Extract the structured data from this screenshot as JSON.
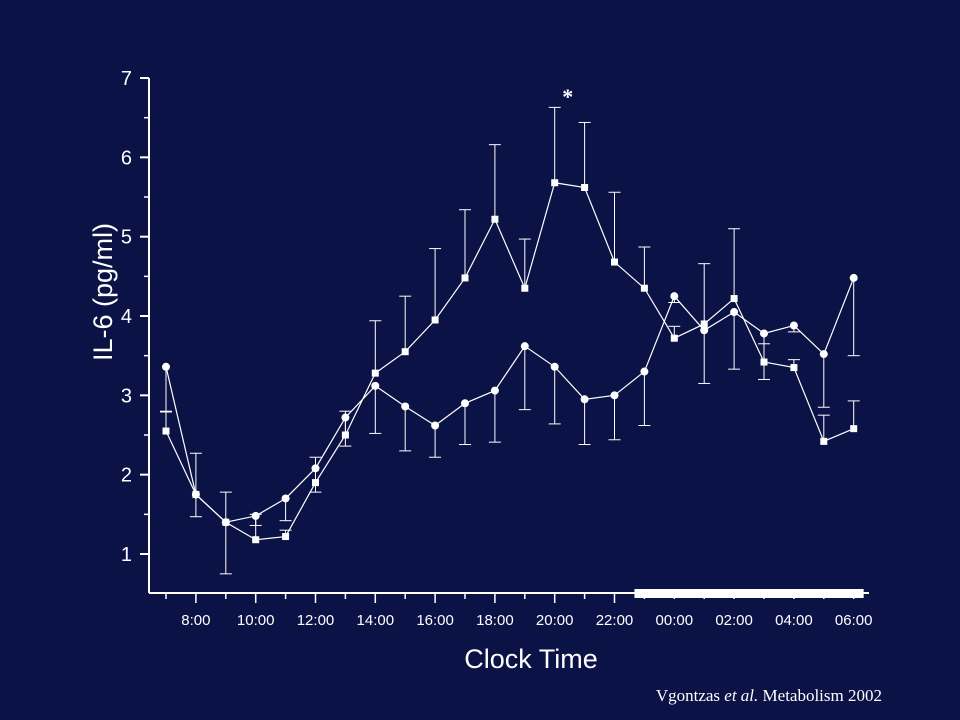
{
  "chart_data": {
    "type": "line",
    "title": "",
    "xlabel": "Clock Time",
    "ylabel": "IL-6 (pg/ml)",
    "ylim": [
      0.5,
      7
    ],
    "yticks": [
      1,
      2,
      3,
      4,
      5,
      6,
      7
    ],
    "x": [
      "07:00",
      "08:00",
      "09:00",
      "10:00",
      "11:00",
      "12:00",
      "13:00",
      "14:00",
      "15:00",
      "16:00",
      "17:00",
      "18:00",
      "19:00",
      "20:00",
      "21:00",
      "22:00",
      "23:00",
      "00:00",
      "01:00",
      "02:00",
      "03:00",
      "04:00",
      "05:00",
      "06:00"
    ],
    "xtick_labels": [
      "8:00",
      "10:00",
      "12:00",
      "14:00",
      "16:00",
      "18:00",
      "20:00",
      "22:00",
      "00:00",
      "02:00",
      "04:00",
      "06:00"
    ],
    "series": [
      {
        "marker": "square",
        "values": [
          2.55,
          1.75,
          1.4,
          1.18,
          1.22,
          1.9,
          2.5,
          3.28,
          3.55,
          3.95,
          4.48,
          5.22,
          4.35,
          5.68,
          5.62,
          4.68,
          4.35,
          3.72,
          3.9,
          4.22,
          3.42,
          3.35,
          2.42,
          2.58
        ],
        "error": [
          0.25,
          0.52,
          0.38,
          0.32,
          0.08,
          0.32,
          0.3,
          0.66,
          0.7,
          0.9,
          0.86,
          0.94,
          0.62,
          0.95,
          0.82,
          0.88,
          0.52,
          0.15,
          0.76,
          0.88,
          0.23,
          0.1,
          0.33,
          0.35
        ]
      },
      {
        "marker": "circle",
        "values": [
          3.36,
          1.75,
          1.4,
          1.48,
          1.7,
          2.08,
          2.72,
          3.12,
          2.86,
          2.62,
          2.9,
          3.06,
          3.62,
          3.36,
          2.95,
          3.0,
          3.3,
          4.25,
          3.82,
          4.05,
          3.78,
          3.88,
          3.52,
          4.48
        ],
        "error": [
          0.57,
          0.28,
          0.65,
          0.12,
          0.28,
          0.3,
          0.36,
          0.6,
          0.56,
          0.4,
          0.52,
          0.65,
          0.8,
          0.72,
          0.57,
          0.56,
          0.68,
          0.08,
          0.67,
          0.72,
          0.58,
          0.08,
          0.67,
          0.98
        ]
      }
    ],
    "annotations": [
      {
        "text": "*",
        "x": "20:00",
        "y": 6.8
      }
    ],
    "sleep_period": {
      "from": "22:40",
      "to": "06:20"
    },
    "grid": false,
    "colors": {
      "background": "#0b1245",
      "foreground": "#ffffff"
    }
  },
  "citation": {
    "author": "Vgontzas",
    "etal": "et al.",
    "rest": " Metabolism 2002"
  }
}
